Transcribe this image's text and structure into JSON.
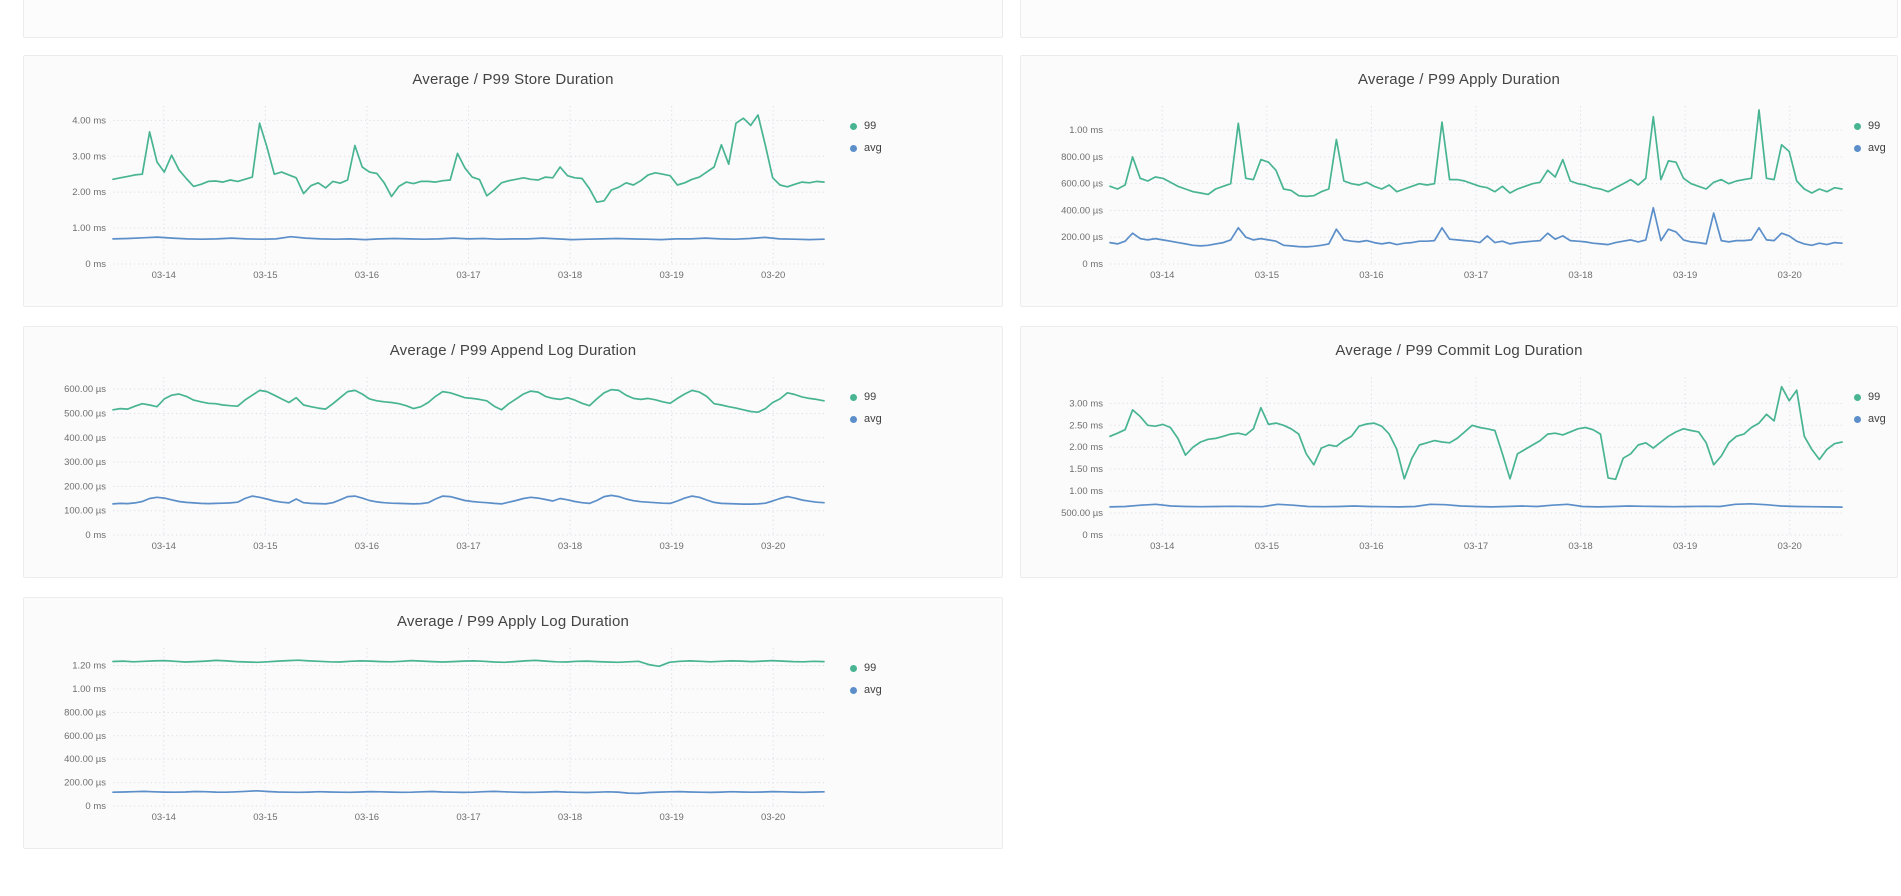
{
  "colors": {
    "p99": "#48b492",
    "avg": "#5c8fc9",
    "grid": "#dcdde8",
    "panel_bg": "#fbfbfb",
    "panel_border": "#ececec",
    "title_text": "#444444",
    "tick_text": "#6e6e6e",
    "legend_text": "#3f3f3f"
  },
  "x_axis_dates": [
    "03-14",
    "03-15",
    "03-16",
    "03-17",
    "03-18",
    "03-19",
    "03-20"
  ],
  "legend_labels": {
    "p99": "99",
    "avg": "avg"
  },
  "chart_data": [
    {
      "type": "line",
      "title": "Average / P99 Store Duration",
      "row": 1,
      "column": "left",
      "unit": "time",
      "y_unit_base": "µs",
      "y_max": 4400,
      "y_ticks": [
        [
          0,
          "0 ms"
        ],
        [
          1000,
          "1.00 ms"
        ],
        [
          2000,
          "2.00 ms"
        ],
        [
          3000,
          "3.00 ms"
        ],
        [
          4000,
          "4.00 ms"
        ]
      ],
      "series": [
        {
          "name": "99",
          "color": "p99",
          "values": [
            2360,
            2400,
            2440,
            2480,
            2500,
            3680,
            2840,
            2560,
            3030,
            2620,
            2380,
            2160,
            2220,
            2300,
            2310,
            2280,
            2340,
            2300,
            2360,
            2420,
            3920,
            3260,
            2500,
            2560,
            2480,
            2400,
            1960,
            2180,
            2260,
            2120,
            2300,
            2250,
            2340,
            3300,
            2700,
            2560,
            2520,
            2260,
            1880,
            2160,
            2280,
            2240,
            2300,
            2300,
            2280,
            2320,
            2340,
            3080,
            2680,
            2420,
            2350,
            1900,
            2060,
            2260,
            2320,
            2360,
            2400,
            2360,
            2340,
            2420,
            2400,
            2700,
            2460,
            2400,
            2380,
            2100,
            1720,
            1760,
            2060,
            2140,
            2260,
            2200,
            2320,
            2480,
            2540,
            2500,
            2460,
            2200,
            2260,
            2360,
            2420,
            2560,
            2700,
            3320,
            2780,
            3920,
            4060,
            3860,
            4150,
            3300,
            2400,
            2200,
            2150,
            2220,
            2280,
            2260,
            2300,
            2280
          ]
        },
        {
          "name": "avg",
          "color": "avg",
          "values": [
            700,
            710,
            730,
            750,
            720,
            700,
            690,
            700,
            720,
            700,
            690,
            700,
            760,
            720,
            700,
            690,
            700,
            680,
            700,
            710,
            700,
            690,
            700,
            720,
            700,
            710,
            690,
            700,
            700,
            720,
            700,
            680,
            690,
            700,
            710,
            700,
            690,
            680,
            700,
            700,
            720,
            700,
            690,
            710,
            740,
            700,
            690,
            680,
            690
          ]
        }
      ]
    },
    {
      "type": "line",
      "title": "Average / P99 Apply Duration",
      "row": 1,
      "column": "right",
      "unit": "time",
      "y_unit_base": "µs",
      "y_max": 1180,
      "y_ticks": [
        [
          0,
          "0 ms"
        ],
        [
          200,
          "200.00 µs"
        ],
        [
          400,
          "400.00 µs"
        ],
        [
          600,
          "600.00 µs"
        ],
        [
          800,
          "800.00 µs"
        ],
        [
          1000,
          "1.00 ms"
        ]
      ],
      "series": [
        {
          "name": "99",
          "color": "p99",
          "values": [
            580,
            560,
            590,
            800,
            640,
            620,
            650,
            640,
            610,
            580,
            560,
            540,
            530,
            520,
            560,
            580,
            600,
            1050,
            640,
            630,
            780,
            760,
            700,
            560,
            550,
            510,
            505,
            510,
            540,
            560,
            930,
            620,
            600,
            590,
            610,
            580,
            560,
            590,
            540,
            560,
            580,
            600,
            590,
            600,
            1060,
            630,
            630,
            620,
            600,
            580,
            570,
            540,
            580,
            530,
            560,
            580,
            600,
            610,
            700,
            650,
            780,
            620,
            600,
            590,
            570,
            560,
            540,
            570,
            600,
            630,
            590,
            640,
            1100,
            630,
            770,
            760,
            640,
            600,
            580,
            560,
            610,
            630,
            600,
            620,
            630,
            640,
            1150,
            640,
            630,
            890,
            840,
            620,
            560,
            530,
            560,
            540,
            570,
            560
          ]
        },
        {
          "name": "avg",
          "color": "avg",
          "values": [
            160,
            150,
            170,
            230,
            190,
            180,
            190,
            180,
            170,
            160,
            150,
            140,
            135,
            140,
            150,
            160,
            180,
            270,
            200,
            180,
            190,
            180,
            170,
            140,
            135,
            130,
            128,
            132,
            140,
            150,
            260,
            180,
            170,
            165,
            175,
            160,
            150,
            160,
            145,
            155,
            160,
            170,
            170,
            175,
            270,
            185,
            180,
            175,
            170,
            160,
            210,
            160,
            170,
            150,
            160,
            165,
            170,
            175,
            230,
            185,
            210,
            175,
            170,
            165,
            155,
            150,
            145,
            160,
            170,
            180,
            165,
            180,
            420,
            175,
            260,
            240,
            180,
            165,
            160,
            150,
            380,
            175,
            165,
            175,
            175,
            180,
            270,
            180,
            175,
            230,
            210,
            170,
            150,
            140,
            155,
            145,
            160,
            155
          ]
        }
      ]
    },
    {
      "type": "line",
      "title": "Average / P99 Append Log Duration",
      "row": 2,
      "column": "left",
      "unit": "time",
      "y_unit_base": "µs",
      "y_max": 650,
      "y_ticks": [
        [
          0,
          "0 ms"
        ],
        [
          100,
          "100.00 µs"
        ],
        [
          200,
          "200.00 µs"
        ],
        [
          300,
          "300.00 µs"
        ],
        [
          400,
          "400.00 µs"
        ],
        [
          500,
          "500.00 µs"
        ],
        [
          600,
          "600.00 µs"
        ]
      ],
      "series": [
        {
          "name": "99",
          "color": "p99",
          "values": [
            515,
            520,
            518,
            530,
            540,
            535,
            528,
            560,
            575,
            580,
            570,
            555,
            548,
            542,
            540,
            535,
            532,
            530,
            555,
            575,
            595,
            590,
            575,
            560,
            545,
            565,
            535,
            528,
            522,
            518,
            540,
            565,
            590,
            595,
            580,
            560,
            552,
            548,
            545,
            540,
            532,
            520,
            528,
            545,
            570,
            590,
            585,
            575,
            565,
            562,
            558,
            552,
            530,
            515,
            540,
            560,
            580,
            592,
            588,
            570,
            562,
            558,
            565,
            555,
            542,
            532,
            560,
            585,
            598,
            595,
            575,
            562,
            558,
            562,
            556,
            548,
            542,
            562,
            580,
            595,
            588,
            570,
            540,
            535,
            528,
            522,
            515,
            508,
            505,
            520,
            545,
            560,
            585,
            578,
            568,
            562,
            558,
            552
          ]
        },
        {
          "name": "avg",
          "color": "avg",
          "values": [
            128,
            130,
            129,
            132,
            138,
            150,
            155,
            152,
            145,
            138,
            134,
            132,
            130,
            129,
            130,
            131,
            132,
            135,
            150,
            160,
            155,
            148,
            140,
            135,
            132,
            148,
            133,
            130,
            129,
            128,
            133,
            145,
            158,
            160,
            152,
            142,
            136,
            133,
            131,
            130,
            129,
            128,
            129,
            133,
            148,
            160,
            158,
            150,
            142,
            138,
            135,
            133,
            130,
            128,
            135,
            142,
            150,
            155,
            152,
            146,
            140,
            150,
            145,
            138,
            133,
            130,
            142,
            158,
            163,
            158,
            148,
            141,
            137,
            135,
            133,
            131,
            130,
            140,
            152,
            160,
            155,
            144,
            134,
            130,
            129,
            128,
            127,
            127,
            128,
            131,
            140,
            150,
            158,
            152,
            144,
            139,
            135,
            133
          ]
        }
      ]
    },
    {
      "type": "line",
      "title": "Average / P99 Commit Log Duration",
      "row": 2,
      "column": "right",
      "unit": "time",
      "y_unit_base": "µs",
      "y_max": 3600,
      "y_ticks": [
        [
          0,
          "0 ms"
        ],
        [
          500,
          "500.00 µs"
        ],
        [
          1000,
          "1.00 ms"
        ],
        [
          1500,
          "1.50 ms"
        ],
        [
          2000,
          "2.00 ms"
        ],
        [
          2500,
          "2.50 ms"
        ],
        [
          3000,
          "3.00 ms"
        ]
      ],
      "series": [
        {
          "name": "99",
          "color": "p99",
          "values": [
            2250,
            2320,
            2400,
            2850,
            2700,
            2500,
            2480,
            2520,
            2450,
            2200,
            1820,
            2000,
            2120,
            2180,
            2200,
            2250,
            2300,
            2320,
            2280,
            2420,
            2900,
            2520,
            2550,
            2500,
            2420,
            2300,
            1850,
            1600,
            1980,
            2050,
            2020,
            2150,
            2250,
            2480,
            2530,
            2550,
            2480,
            2300,
            1950,
            1280,
            1750,
            2050,
            2100,
            2150,
            2120,
            2100,
            2200,
            2350,
            2500,
            2450,
            2420,
            2380,
            1850,
            1280,
            1850,
            1950,
            2050,
            2150,
            2300,
            2320,
            2280,
            2350,
            2420,
            2450,
            2400,
            2300,
            1300,
            1270,
            1750,
            1850,
            2050,
            2100,
            1980,
            2120,
            2250,
            2350,
            2420,
            2380,
            2350,
            2100,
            1600,
            1800,
            2100,
            2250,
            2300,
            2450,
            2550,
            2750,
            2600,
            3380,
            3060,
            3300,
            2250,
            1950,
            1720,
            1950,
            2080,
            2120
          ]
        },
        {
          "name": "avg",
          "color": "avg",
          "values": [
            640,
            650,
            680,
            700,
            660,
            650,
            645,
            650,
            655,
            650,
            645,
            700,
            680,
            650,
            645,
            650,
            660,
            650,
            645,
            640,
            650,
            700,
            690,
            660,
            650,
            640,
            650,
            660,
            650,
            680,
            700,
            650,
            640,
            650,
            660,
            655,
            650,
            645,
            650,
            655,
            650,
            700,
            710,
            690,
            660,
            650,
            645,
            640,
            635
          ]
        }
      ]
    },
    {
      "type": "line",
      "title": "Average / P99 Apply Log Duration",
      "row": 3,
      "column": "left",
      "unit": "time",
      "y_unit_base": "µs",
      "y_max": 1350,
      "y_ticks": [
        [
          0,
          "0 ms"
        ],
        [
          200,
          "200.00 µs"
        ],
        [
          400,
          "400.00 µs"
        ],
        [
          600,
          "600.00 µs"
        ],
        [
          800,
          "800.00 µs"
        ],
        [
          1000,
          "1.00 ms"
        ],
        [
          1200,
          "1.20 ms"
        ]
      ],
      "series": [
        {
          "name": "99",
          "color": "p99",
          "values": [
            1235,
            1238,
            1232,
            1236,
            1240,
            1242,
            1236,
            1230,
            1234,
            1238,
            1244,
            1240,
            1234,
            1230,
            1228,
            1232,
            1238,
            1242,
            1246,
            1240,
            1236,
            1232,
            1230,
            1236,
            1240,
            1238,
            1234,
            1232,
            1236,
            1242,
            1238,
            1234,
            1230,
            1234,
            1238,
            1240,
            1236,
            1230,
            1228,
            1234,
            1240,
            1244,
            1238,
            1232,
            1230,
            1236,
            1238,
            1234,
            1230,
            1228,
            1232,
            1236,
            1208,
            1194,
            1228,
            1236,
            1240,
            1236,
            1232,
            1236,
            1240,
            1238,
            1234,
            1238,
            1242,
            1238,
            1234,
            1232,
            1236,
            1234
          ]
        },
        {
          "name": "avg",
          "color": "avg",
          "values": [
            118,
            120,
            122,
            125,
            121,
            119,
            118,
            120,
            124,
            122,
            119,
            118,
            121,
            126,
            130,
            124,
            120,
            118,
            117,
            119,
            122,
            120,
            118,
            117,
            120,
            123,
            121,
            119,
            117,
            118,
            121,
            124,
            120,
            118,
            116,
            118,
            122,
            125,
            121,
            118,
            116,
            117,
            120,
            123,
            119,
            117,
            115,
            118,
            121,
            119,
            110,
            108,
            115,
            119,
            121,
            123,
            120,
            118,
            116,
            119,
            122,
            120,
            118,
            120,
            123,
            121,
            119,
            117,
            120,
            121
          ]
        }
      ]
    }
  ]
}
